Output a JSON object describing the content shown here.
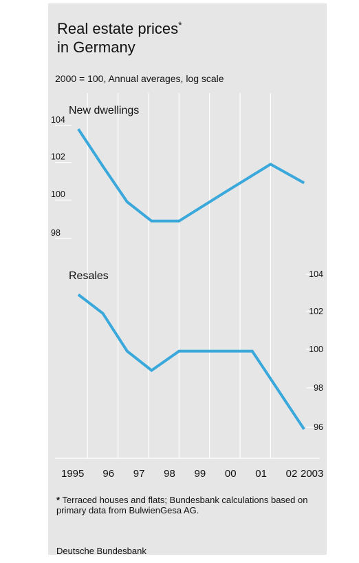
{
  "chart_data": {
    "type": "line",
    "title": "Real estate prices",
    "title_line1": "Real estate prices",
    "title_line2": "in Germany",
    "title_marker": "*",
    "subtitle": "2000 = 100, Annual averages, log scale",
    "scale": "log",
    "line_color": "#3aa8db",
    "background_color": "#e6e6e6",
    "x": [
      "1995",
      "96",
      "97",
      "98",
      "99",
      "00",
      "01",
      "02",
      "2003"
    ],
    "panels": [
      {
        "name": "New dwellings",
        "axis_side": "left",
        "yticks": [
          "104",
          "102",
          "100",
          "98"
        ],
        "ylim": [
          97,
          105
        ],
        "points": [
          {
            "x": 1995.2,
            "y": 103.8
          },
          {
            "x": 1996.0,
            "y": 101.8
          },
          {
            "x": 1996.8,
            "y": 99.9
          },
          {
            "x": 1997.6,
            "y": 98.9
          },
          {
            "x": 1998.5,
            "y": 98.9
          },
          {
            "x": 2000.0,
            "y": 100.4
          },
          {
            "x": 2001.5,
            "y": 101.9
          },
          {
            "x": 2002.6,
            "y": 100.9
          }
        ]
      },
      {
        "name": "Resales",
        "axis_side": "right",
        "yticks": [
          "104",
          "102",
          "100",
          "98",
          "96"
        ],
        "ylim": [
          95,
          105
        ],
        "points": [
          {
            "x": 1995.2,
            "y": 102.9
          },
          {
            "x": 1996.0,
            "y": 101.9
          },
          {
            "x": 1996.8,
            "y": 99.9
          },
          {
            "x": 1997.6,
            "y": 98.9
          },
          {
            "x": 1998.5,
            "y": 99.9
          },
          {
            "x": 2000.0,
            "y": 99.9
          },
          {
            "x": 2000.9,
            "y": 99.9
          },
          {
            "x": 2002.6,
            "y": 95.9
          }
        ]
      }
    ],
    "grid": true
  },
  "footnote": {
    "marker": "*",
    "text": "Terraced houses and flats; Bundesbank calculations based on primary data from BulwienGesa AG."
  },
  "source": "Deutsche Bundesbank"
}
